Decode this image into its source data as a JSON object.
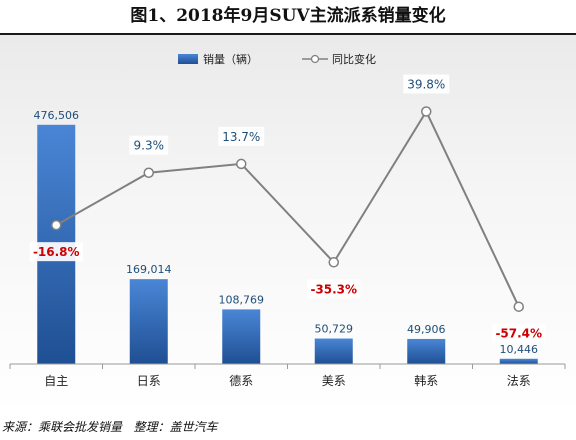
{
  "title": "图1、2018年9月SUV主流派系销量变化",
  "footer": {
    "source_label": "来源：乘联会批发销量",
    "compiler_label": "整理：盖世汽车"
  },
  "colors": {
    "bar_top": "#4a86d6",
    "bar_bottom": "#1f4f93",
    "line": "#808080",
    "negative_label": "#cc0000",
    "positive_label": "#1f4e79",
    "value_label": "#1f4e79"
  },
  "chart_data": {
    "type": "bar",
    "categories": [
      "自主",
      "日系",
      "德系",
      "美系",
      "韩系",
      "法系"
    ],
    "series": [
      {
        "name": "销量（辆）",
        "type": "bar",
        "axis": "left",
        "values": [
          476506,
          169014,
          108769,
          50729,
          49906,
          10446
        ],
        "labels": [
          "476,506",
          "169,014",
          "108,769",
          "50,729",
          "49,906",
          "10,446"
        ]
      },
      {
        "name": "同比变化",
        "type": "line",
        "axis": "right",
        "values": [
          -16.8,
          9.3,
          13.7,
          -35.3,
          39.8,
          -57.4
        ],
        "labels": [
          "-16.8%",
          "9.3%",
          "13.7%",
          "-35.3%",
          "39.8%",
          "-57.4%"
        ]
      }
    ],
    "ylim": [
      0,
      500000
    ],
    "y2lim": [
      -70,
      50
    ],
    "legend_position": "top-center",
    "grid": false
  }
}
